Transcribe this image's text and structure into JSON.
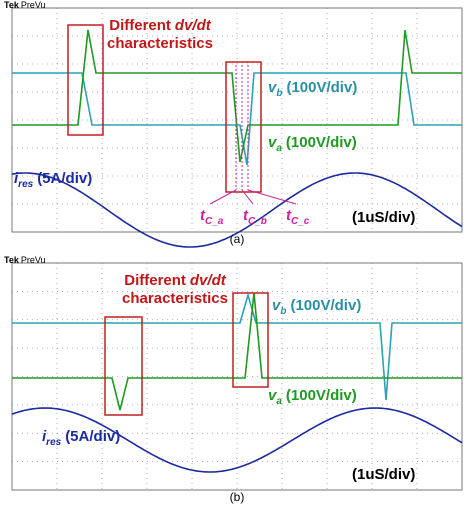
{
  "panels": [
    {
      "brand": "Tek",
      "mode": "PreVu",
      "annotation": {
        "word": "Different",
        "italic": "dv/dt",
        "line2": "characteristics"
      },
      "traces": [
        {
          "symbol": "v",
          "sub": "b",
          "scale": "(100V/div)"
        },
        {
          "symbol": "v",
          "sub": "a",
          "scale": "(100V/div)"
        },
        {
          "symbol": "i",
          "sub": "res",
          "scale": "(5A/div)"
        }
      ],
      "time_markers": [
        {
          "symbol": "t",
          "sub": "C_a"
        },
        {
          "symbol": "t",
          "sub": "C_b"
        },
        {
          "symbol": "t",
          "sub": "C_c"
        }
      ],
      "timebase": "(1uS/div)",
      "caption": "(a)"
    },
    {
      "brand": "Tek",
      "mode": "PreVu",
      "annotation": {
        "word": "Different",
        "italic": "dv/dt",
        "line2": "characteristics"
      },
      "traces": [
        {
          "symbol": "v",
          "sub": "b",
          "scale": "(100V/div)"
        },
        {
          "symbol": "v",
          "sub": "a",
          "scale": "(100V/div)"
        },
        {
          "symbol": "i",
          "sub": "res",
          "scale": "(5A/div)"
        }
      ],
      "timebase": "(1uS/div)",
      "caption": "(b)"
    }
  ]
}
